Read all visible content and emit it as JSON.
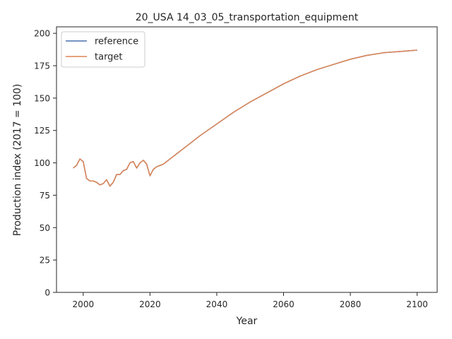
{
  "chart_data": {
    "type": "line",
    "title": "20_USA 14_03_05_transportation_equipment",
    "xlabel": "Year",
    "ylabel": "Production index (2017 = 100)",
    "xlim": [
      1992,
      2106
    ],
    "ylim": [
      0,
      205
    ],
    "xticks": [
      2000,
      2020,
      2040,
      2060,
      2080,
      2100
    ],
    "yticks": [
      0,
      25,
      50,
      75,
      100,
      125,
      150,
      175,
      200
    ],
    "grid": false,
    "legend_position": "top-left",
    "series": [
      {
        "name": "reference",
        "color": "#4c72b0",
        "x": [
          1997,
          1998,
          1999,
          2000,
          2001,
          2002,
          2003,
          2004,
          2005,
          2006,
          2007,
          2008,
          2009,
          2010,
          2011,
          2012,
          2013,
          2014,
          2015,
          2016,
          2017,
          2018,
          2019,
          2020,
          2021,
          2022,
          2023,
          2024,
          2025,
          2026,
          2027,
          2028,
          2029,
          2030,
          2035,
          2040,
          2045,
          2050,
          2055,
          2060,
          2065,
          2070,
          2075,
          2080,
          2085,
          2090,
          2095,
          2100
        ],
        "y": [
          96,
          98,
          103,
          101,
          88,
          86,
          86,
          85,
          83,
          84,
          87,
          82,
          85,
          91,
          91,
          94,
          95,
          100,
          101,
          96,
          100,
          102,
          99,
          90,
          95,
          97,
          98,
          99,
          101,
          103,
          105,
          107,
          109,
          111,
          121,
          130,
          139,
          147,
          154,
          161,
          167,
          172,
          176,
          180,
          183,
          185,
          186,
          187
        ]
      },
      {
        "name": "target",
        "color": "#dd8452",
        "x": [
          1997,
          1998,
          1999,
          2000,
          2001,
          2002,
          2003,
          2004,
          2005,
          2006,
          2007,
          2008,
          2009,
          2010,
          2011,
          2012,
          2013,
          2014,
          2015,
          2016,
          2017,
          2018,
          2019,
          2020,
          2021,
          2022,
          2023,
          2024,
          2025,
          2026,
          2027,
          2028,
          2029,
          2030,
          2035,
          2040,
          2045,
          2050,
          2055,
          2060,
          2065,
          2070,
          2075,
          2080,
          2085,
          2090,
          2095,
          2100
        ],
        "y": [
          96,
          98,
          103,
          101,
          88,
          86,
          86,
          85,
          83,
          84,
          87,
          82,
          85,
          91,
          91,
          94,
          95,
          100,
          101,
          96,
          100,
          102,
          99,
          90,
          95,
          97,
          98,
          99,
          101,
          103,
          105,
          107,
          109,
          111,
          121,
          130,
          139,
          147,
          154,
          161,
          167,
          172,
          176,
          180,
          183,
          185,
          186,
          187
        ]
      }
    ]
  }
}
